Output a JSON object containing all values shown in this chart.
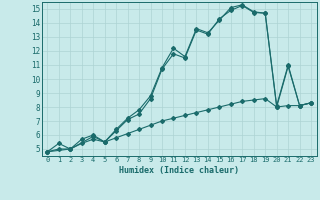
{
  "xlabel": "Humidex (Indice chaleur)",
  "ylabel": "",
  "background_color": "#c8eaea",
  "grid_color": "#add4d4",
  "line_color": "#1a6b6b",
  "xlim": [
    -0.5,
    23.5
  ],
  "ylim": [
    4.5,
    15.5
  ],
  "xticks": [
    0,
    1,
    2,
    3,
    4,
    5,
    6,
    7,
    8,
    9,
    10,
    11,
    12,
    13,
    14,
    15,
    16,
    17,
    18,
    19,
    20,
    21,
    22,
    23
  ],
  "yticks": [
    5,
    6,
    7,
    8,
    9,
    10,
    11,
    12,
    13,
    14,
    15
  ],
  "curve1_x": [
    0,
    1,
    2,
    3,
    4,
    5,
    6,
    7,
    8,
    9,
    10,
    11,
    12,
    13,
    14,
    15,
    16,
    17,
    18,
    19,
    20,
    21,
    22,
    23
  ],
  "curve1_y": [
    4.8,
    5.4,
    5.0,
    5.7,
    6.0,
    5.5,
    6.3,
    7.1,
    7.5,
    8.6,
    10.7,
    11.8,
    11.5,
    13.5,
    13.2,
    14.3,
    14.9,
    15.25,
    14.75,
    14.7,
    8.0,
    10.9,
    8.1,
    8.3
  ],
  "curve2_x": [
    0,
    2,
    4,
    5,
    6,
    7,
    8,
    9,
    10,
    11,
    12,
    13,
    14,
    15,
    16,
    17,
    18,
    19,
    20,
    21,
    22,
    23
  ],
  "curve2_y": [
    4.8,
    5.0,
    5.9,
    5.5,
    6.4,
    7.2,
    7.8,
    8.8,
    10.8,
    12.2,
    11.6,
    13.6,
    13.3,
    14.2,
    15.1,
    15.3,
    14.8,
    14.7,
    8.1,
    11.0,
    8.1,
    8.3
  ],
  "curve3_x": [
    0,
    1,
    2,
    3,
    4,
    5,
    6,
    7,
    8,
    9,
    10,
    11,
    12,
    13,
    14,
    15,
    16,
    17,
    18,
    19,
    20,
    21,
    22,
    23
  ],
  "curve3_y": [
    4.8,
    5.0,
    5.0,
    5.4,
    5.7,
    5.5,
    5.8,
    6.1,
    6.4,
    6.7,
    7.0,
    7.2,
    7.4,
    7.6,
    7.8,
    8.0,
    8.2,
    8.4,
    8.5,
    8.6,
    8.0,
    8.1,
    8.1,
    8.3
  ]
}
